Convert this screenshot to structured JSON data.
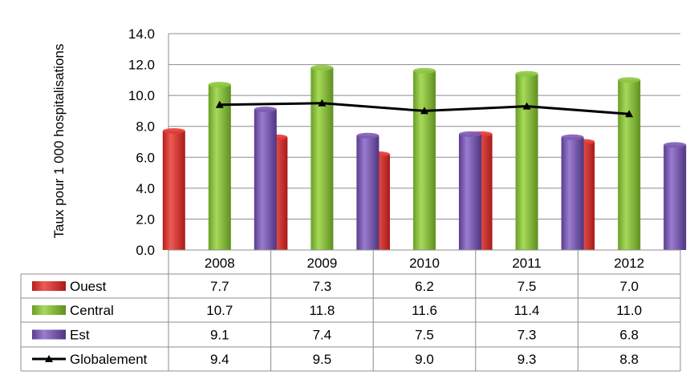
{
  "chart_data": {
    "type": "bar",
    "title": "",
    "xlabel": "",
    "ylabel": "Taux pour 1 000 hospitalisations",
    "ylim": [
      0,
      14
    ],
    "ytick_step": 2,
    "ytick_labels": [
      "0.0",
      "2.0",
      "4.0",
      "6.0",
      "8.0",
      "10.0",
      "12.0",
      "14.0"
    ],
    "grid": true,
    "legend": "data-table",
    "categories": [
      "2008",
      "2009",
      "2010",
      "2011",
      "2012"
    ],
    "series": [
      {
        "name": "Ouest",
        "type": "bar",
        "color": "#e33b36",
        "values": [
          7.7,
          7.3,
          6.2,
          7.5,
          7.0
        ],
        "labels": [
          "7.7",
          "7.3",
          "6.2",
          "7.5",
          "7.0"
        ]
      },
      {
        "name": "Central",
        "type": "bar",
        "color": "#8cc63f",
        "values": [
          10.7,
          11.8,
          11.6,
          11.4,
          11.0
        ],
        "labels": [
          "10.7",
          "11.8",
          "11.6",
          "11.4",
          "11.0"
        ]
      },
      {
        "name": "Est",
        "type": "bar",
        "color": "#7d5bb5",
        "values": [
          9.1,
          7.4,
          7.5,
          7.3,
          6.8
        ],
        "labels": [
          "9.1",
          "7.4",
          "7.5",
          "7.3",
          "6.8"
        ]
      },
      {
        "name": "Globalement",
        "type": "line",
        "color": "#000000",
        "values": [
          9.4,
          9.5,
          9.0,
          9.3,
          8.8
        ],
        "labels": [
          "9.4",
          "9.5",
          "9.0",
          "9.3",
          "8.8"
        ]
      }
    ]
  }
}
